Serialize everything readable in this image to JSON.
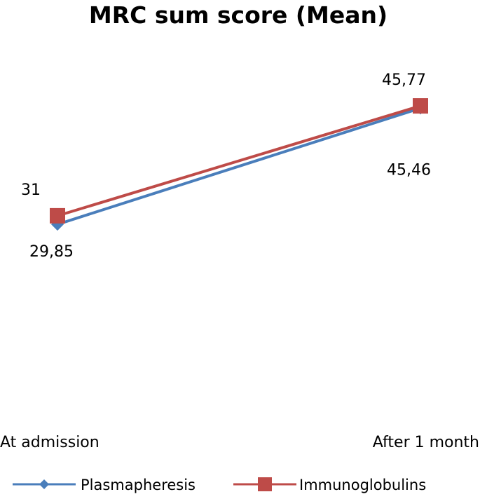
{
  "chart_data": {
    "type": "line",
    "title": "MRC sum score (Mean)",
    "categories": [
      "At admission",
      "After 1 month"
    ],
    "series": [
      {
        "name": "Plasmapheresis",
        "values": [
          29.85,
          45.46
        ],
        "labels": [
          "29,85",
          "45,46"
        ],
        "color": "#4a7ebb",
        "marker": "diamond"
      },
      {
        "name": "Immunoglobulins",
        "values": [
          31,
          45.77
        ],
        "labels": [
          "31",
          "45,77"
        ],
        "color": "#be4b48",
        "marker": "square"
      }
    ],
    "ylim": [
      0,
      60
    ],
    "grid": false,
    "legend": "bottom"
  }
}
